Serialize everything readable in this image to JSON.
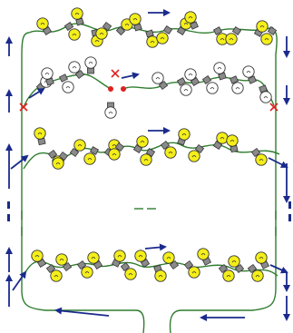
{
  "diagram": {
    "colors": {
      "wire": "#2f7d2f",
      "lit_bulb": "#f4ee1a",
      "dark_bulb": "#ffffff",
      "bulb_outline": "#333333",
      "socket": "#8a8a8a",
      "arrow": "#1a2a8c",
      "break_cross": "#e02020",
      "broken_end": "#e02020"
    },
    "strings": [
      {
        "name": "string-1",
        "state": "lit"
      },
      {
        "name": "string-2",
        "state": "dark, broken"
      },
      {
        "name": "string-3",
        "state": "lit"
      },
      {
        "name": "string-4",
        "state": "lit"
      }
    ],
    "icons": [
      "bulb-icon",
      "arrow-icon",
      "break-marker-icon"
    ]
  }
}
